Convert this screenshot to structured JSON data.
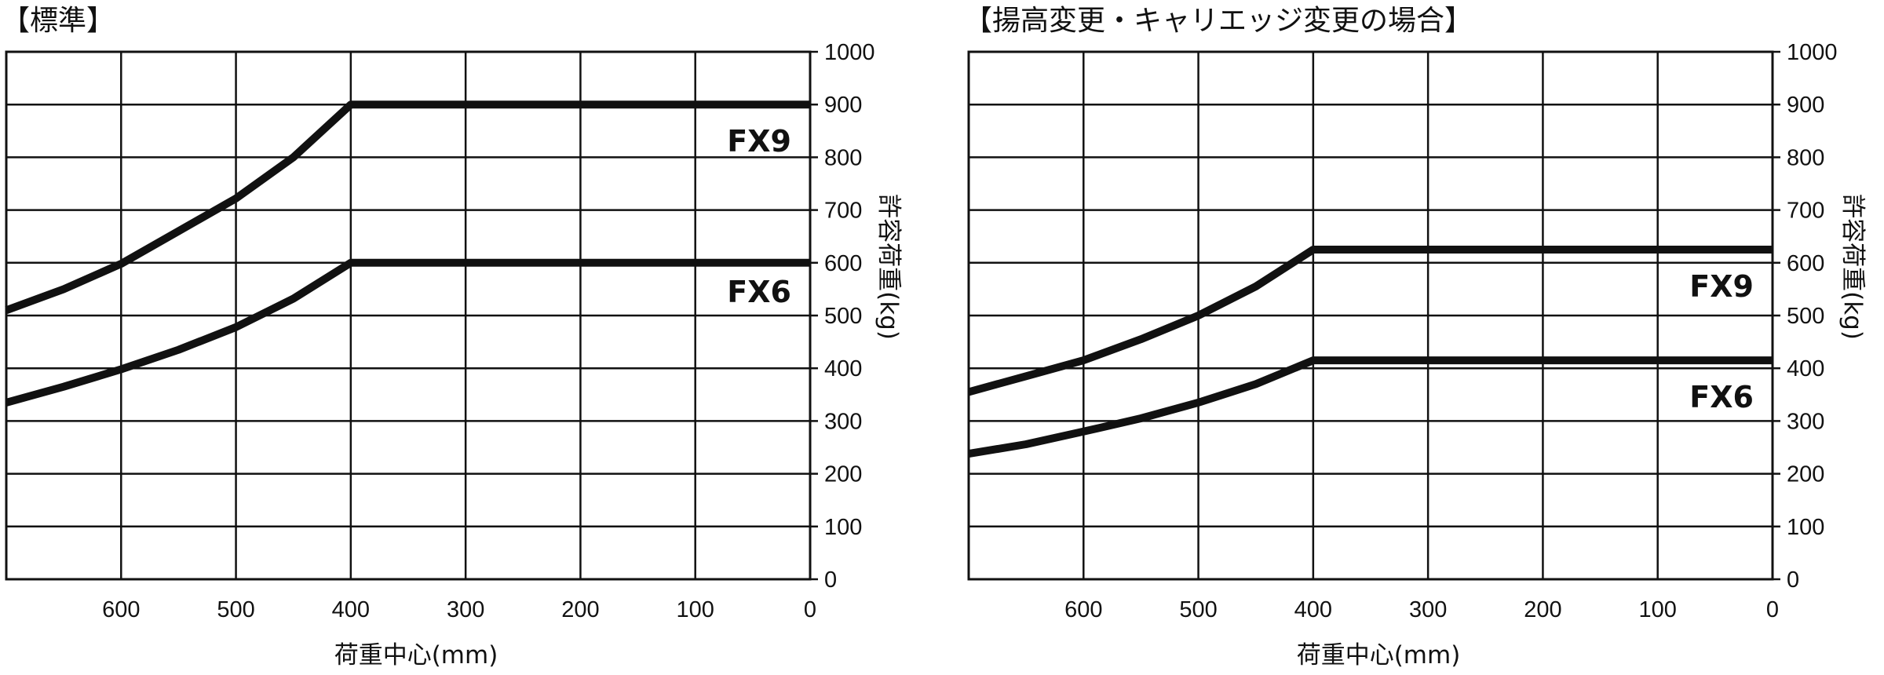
{
  "chart_data": [
    {
      "type": "line",
      "title": "【標準】",
      "xlabel": "荷重中心(mm)",
      "ylabel": "許容荷重(kg)",
      "xlim": [
        700,
        0
      ],
      "ylim": [
        0,
        1000
      ],
      "x_ticks": [
        "600",
        "500",
        "400",
        "300",
        "200",
        "100",
        "0"
      ],
      "y_ticks": [
        "0",
        "100",
        "200",
        "300",
        "400",
        "500",
        "600",
        "700",
        "800",
        "900",
        "1000"
      ],
      "grid": true,
      "series": [
        {
          "name": "FX9",
          "x": [
            700,
            650,
            600,
            550,
            500,
            450,
            400,
            300,
            200,
            100,
            0
          ],
          "y": [
            510,
            550,
            598,
            660,
            722,
            800,
            900,
            900,
            900,
            900,
            900
          ]
        },
        {
          "name": "FX6",
          "x": [
            700,
            650,
            600,
            550,
            500,
            450,
            400,
            300,
            200,
            100,
            0
          ],
          "y": [
            335,
            365,
            398,
            435,
            478,
            532,
            600,
            600,
            600,
            600,
            600
          ]
        }
      ]
    },
    {
      "type": "line",
      "title": "【揚高変更・キャリエッジ変更の場合】",
      "xlabel": "荷重中心(mm)",
      "ylabel": "許容荷重(kg)",
      "xlim": [
        700,
        0
      ],
      "ylim": [
        0,
        1000
      ],
      "x_ticks": [
        "600",
        "500",
        "400",
        "300",
        "200",
        "100",
        "0"
      ],
      "y_ticks": [
        "0",
        "100",
        "200",
        "300",
        "400",
        "500",
        "600",
        "700",
        "800",
        "900",
        "1000"
      ],
      "grid": true,
      "series": [
        {
          "name": "FX9",
          "x": [
            700,
            650,
            600,
            550,
            500,
            450,
            400,
            300,
            200,
            100,
            0
          ],
          "y": [
            355,
            385,
            415,
            455,
            500,
            555,
            625,
            625,
            625,
            625,
            625
          ]
        },
        {
          "name": "FX6",
          "x": [
            700,
            650,
            600,
            550,
            500,
            450,
            400,
            300,
            200,
            100,
            0
          ],
          "y": [
            238,
            256,
            280,
            305,
            335,
            370,
            415,
            415,
            415,
            415,
            415
          ]
        }
      ]
    }
  ]
}
